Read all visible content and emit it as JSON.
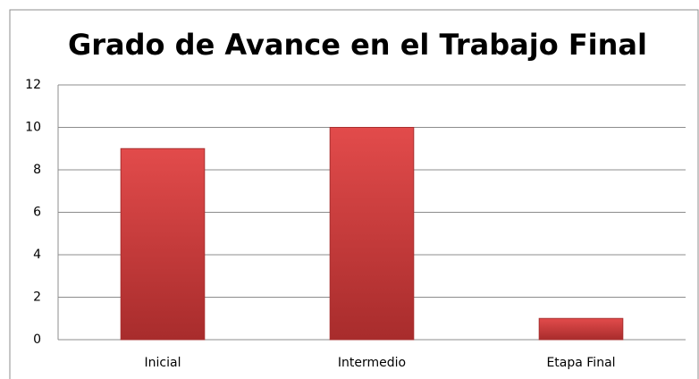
{
  "chart_data": {
    "type": "bar",
    "title": "Grado de Avance en el Trabajo Final",
    "categories": [
      "Inicial",
      "Intermedio",
      "Etapa Final"
    ],
    "values": [
      9,
      10,
      1
    ],
    "color": "#d94545",
    "ylim": [
      0,
      12
    ],
    "yticks": [
      0,
      2,
      4,
      6,
      8,
      10,
      12
    ],
    "grid": true
  }
}
